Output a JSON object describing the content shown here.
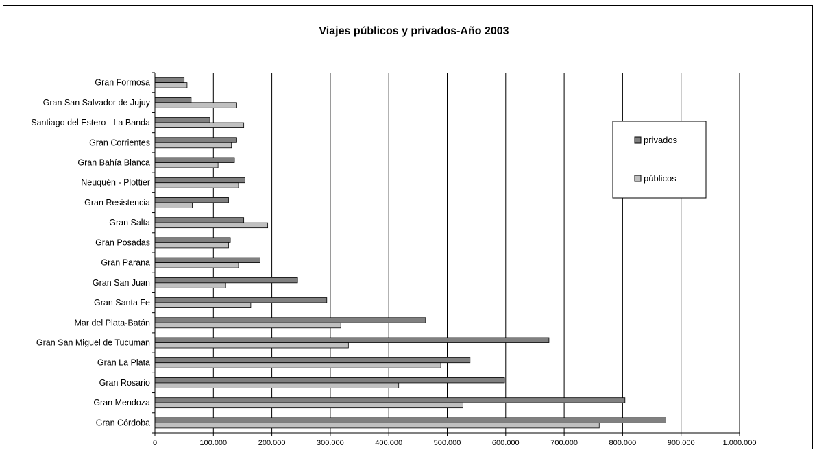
{
  "chart_data": {
    "type": "bar",
    "orientation": "horizontal",
    "title": "Viajes públicos y privados-Año 2003",
    "xlabel": "",
    "ylabel": "",
    "xlim": [
      0,
      1000000
    ],
    "x_ticks": [
      0,
      100000,
      200000,
      300000,
      400000,
      500000,
      600000,
      700000,
      800000,
      900000,
      1000000
    ],
    "x_tick_labels": [
      "0",
      "100.000",
      "200.000",
      "300.000",
      "400.000",
      "500.000",
      "600.000",
      "700.000",
      "800.000",
      "900.000",
      "1.000.000"
    ],
    "grid": "vertical major gridlines",
    "legend_position": "right",
    "categories": [
      "Gran Formosa",
      "Gran San Salvador de Jujuy",
      "Santiago del Estero - La Banda",
      "Gran Corrientes",
      "Gran Bahía Blanca",
      "Neuquén - Plottier",
      "Gran Resistencia",
      "Gran Salta",
      "Gran Posadas",
      "Gran Parana",
      "Gran San Juan",
      "Gran Santa Fe",
      "Mar del Plata-Batán",
      "Gran San Miguel de Tucuman",
      "Gran La Plata",
      "Gran Rosario",
      "Gran Mendoza",
      "Gran Córdoba"
    ],
    "series": [
      {
        "name": "privados",
        "color": "#808080",
        "values": [
          50000,
          62000,
          94000,
          140000,
          136000,
          154000,
          126000,
          152000,
          129000,
          180000,
          244000,
          294000,
          463000,
          674000,
          539000,
          598000,
          804000,
          874000
        ]
      },
      {
        "name": "públicos",
        "color": "#c0c0c0",
        "values": [
          55000,
          140000,
          152000,
          131000,
          108000,
          143000,
          64000,
          193000,
          126000,
          143000,
          121000,
          164000,
          318000,
          331000,
          489000,
          417000,
          527000,
          760000
        ]
      }
    ]
  }
}
